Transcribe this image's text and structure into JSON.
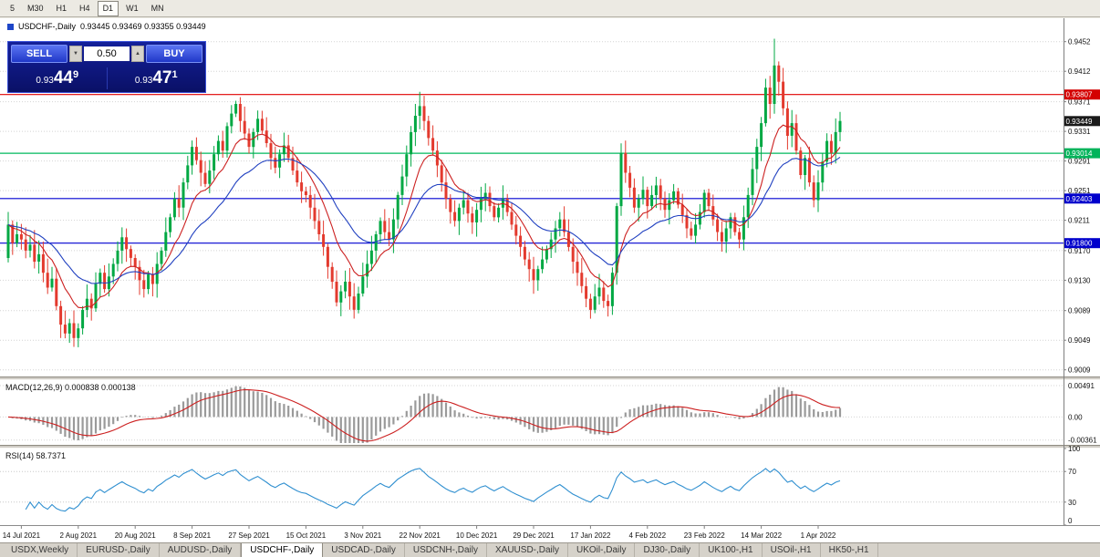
{
  "toolbar": {
    "timeframes": [
      "5",
      "M30",
      "H1",
      "H4",
      "D1",
      "W1",
      "MN"
    ],
    "active": "D1"
  },
  "chart_header": {
    "symbol_title": "USDCHF-,Daily",
    "ohlc": "0.93445 0.93469 0.93355 0.93449"
  },
  "trade_panel": {
    "sell_label": "SELL",
    "buy_label": "BUY",
    "volume": "0.50",
    "sell_price_major": "0.93",
    "sell_price_big": "44",
    "sell_price_sup": "9",
    "buy_price_major": "0.93",
    "buy_price_big": "47",
    "buy_price_sup": "1"
  },
  "icons": {
    "spin_down": "▼",
    "spin_up": "▲"
  },
  "price_scale": {
    "ticks": [
      0.9452,
      0.9412,
      0.9371,
      0.9331,
      0.9291,
      0.9251,
      0.9211,
      0.917,
      0.913,
      0.9089,
      0.9049,
      0.9009
    ],
    "tags": [
      {
        "label": "0.93807",
        "value": 0.93807,
        "color": "#d40000"
      },
      {
        "label": "0.93449",
        "value": 0.93449,
        "color": "#1a1a1a"
      },
      {
        "label": "0.93014",
        "value": 0.93014,
        "color": "#00b35a"
      },
      {
        "label": "0.92403",
        "value": 0.92403,
        "color": "#0000cc"
      },
      {
        "label": "0.91800",
        "value": 0.918,
        "color": "#0000cc"
      }
    ]
  },
  "chart_data": {
    "type": "candlestick",
    "symbol": "USDCHF-,Daily",
    "dates": [
      "14 Jul 2021",
      "2 Aug 2021",
      "20 Aug 2021",
      "8 Sep 2021",
      "27 Sep 2021",
      "15 Oct 2021",
      "3 Nov 2021",
      "22 Nov 2021",
      "10 Dec 2021",
      "29 Dec 2021",
      "17 Jan 2022",
      "4 Feb 2022",
      "23 Feb 2022",
      "14 Mar 2022",
      "1 Apr 2022"
    ],
    "label_start": 3,
    "label_step": 13,
    "y_range": [
      0.9,
      0.948
    ],
    "open_first": 0.916,
    "closes": [
      0.9205,
      0.918,
      0.9192,
      0.9185,
      0.917,
      0.9178,
      0.9155,
      0.9165,
      0.914,
      0.912,
      0.9132,
      0.9095,
      0.907,
      0.9058,
      0.9072,
      0.9052,
      0.9065,
      0.909,
      0.9105,
      0.9092,
      0.9125,
      0.914,
      0.9118,
      0.9135,
      0.9152,
      0.917,
      0.9188,
      0.9172,
      0.916,
      0.9148,
      0.913,
      0.9118,
      0.9138,
      0.9125,
      0.9152,
      0.917,
      0.9195,
      0.9215,
      0.924,
      0.9228,
      0.9262,
      0.9285,
      0.931,
      0.9292,
      0.9275,
      0.926,
      0.9278,
      0.93,
      0.9318,
      0.9305,
      0.9338,
      0.9355,
      0.9368,
      0.9345,
      0.9328,
      0.931,
      0.933,
      0.9348,
      0.9332,
      0.9315,
      0.9295,
      0.9282,
      0.93,
      0.9312,
      0.9295,
      0.9278,
      0.9262,
      0.925,
      0.9245,
      0.9228,
      0.921,
      0.9192,
      0.9175,
      0.9148,
      0.9128,
      0.91,
      0.9115,
      0.9128,
      0.9108,
      0.909,
      0.9112,
      0.9135,
      0.9152,
      0.917,
      0.9192,
      0.921,
      0.9195,
      0.9185,
      0.9212,
      0.9245,
      0.927,
      0.93,
      0.933,
      0.9352,
      0.9365,
      0.9345,
      0.9322,
      0.9305,
      0.9285,
      0.9262,
      0.924,
      0.9222,
      0.921,
      0.9228,
      0.9238,
      0.922,
      0.9208,
      0.9225,
      0.924,
      0.9248,
      0.923,
      0.9215,
      0.9228,
      0.924,
      0.9222,
      0.9205,
      0.919,
      0.9175,
      0.9158,
      0.9145,
      0.913,
      0.9145,
      0.9158,
      0.9172,
      0.9185,
      0.92,
      0.9212,
      0.9195,
      0.9175,
      0.9155,
      0.914,
      0.9122,
      0.9105,
      0.909,
      0.9108,
      0.912,
      0.9102,
      0.9095,
      0.914,
      0.923,
      0.9302,
      0.9275,
      0.9255,
      0.9228,
      0.924,
      0.9252,
      0.923,
      0.9245,
      0.9258,
      0.924,
      0.9225,
      0.9238,
      0.925,
      0.9232,
      0.9218,
      0.92,
      0.919,
      0.9205,
      0.9222,
      0.9248,
      0.923,
      0.9212,
      0.9195,
      0.9182,
      0.92,
      0.9215,
      0.9195,
      0.9185,
      0.9215,
      0.9245,
      0.928,
      0.931,
      0.9342,
      0.939,
      0.9368,
      0.942,
      0.9398,
      0.9362,
      0.9325,
      0.9342,
      0.9305,
      0.9272,
      0.9295,
      0.9262,
      0.9238,
      0.9262,
      0.929,
      0.9318,
      0.9302,
      0.933,
      0.9345
    ],
    "spike_high": {
      "index": 175,
      "value": 0.9456
    },
    "spike_low": {
      "index": 15,
      "value": 0.904
    },
    "levels": [
      {
        "price": 0.93807,
        "color": "#e00000"
      },
      {
        "price": 0.93014,
        "color": "#00b95e"
      },
      {
        "price": 0.92403,
        "color": "#0000d0"
      },
      {
        "price": 0.918,
        "color": "#0000d0"
      }
    ],
    "up_color": "#00a843",
    "down_color": "#e33a2e",
    "ma_fast_color": "#cc2020",
    "ma_slow_color": "#2040c0",
    "ma_fast_period": 10,
    "ma_slow_period": 24
  },
  "macd_pane": {
    "label": "MACD(12,26,9) 0.000838 0.000138",
    "axis": [
      {
        "label": "0.00491",
        "value": 0.00491
      },
      {
        "label": "0.00",
        "value": 0
      },
      {
        "label": "-0.00361",
        "value": -0.00361
      }
    ],
    "histogram_color": "#9a9a9a",
    "signal_color": "#cc2020"
  },
  "rsi_pane": {
    "label": "RSI(14) 58.7371",
    "period": 14,
    "current": 58.7371,
    "axis": [
      {
        "label": "100",
        "value": 100
      },
      {
        "label": "70",
        "value": 70
      },
      {
        "label": "30",
        "value": 30
      },
      {
        "label": "0",
        "value": 0
      }
    ],
    "levels": [
      70,
      30
    ],
    "line_color": "#2f8fd0"
  },
  "tabs": {
    "items": [
      "USDX,Weekly",
      "EURUSD-,Daily",
      "AUDUSD-,Daily",
      "USDCHF-,Daily",
      "USDCAD-,Daily",
      "USDCNH-,Daily",
      "XAUUSD-,Daily",
      "UKOil-,Daily",
      "DJ30-,Daily",
      "UK100-,H1",
      "USOil-,H1",
      "HK50-,H1"
    ],
    "active": "USDCHF-,Daily"
  }
}
